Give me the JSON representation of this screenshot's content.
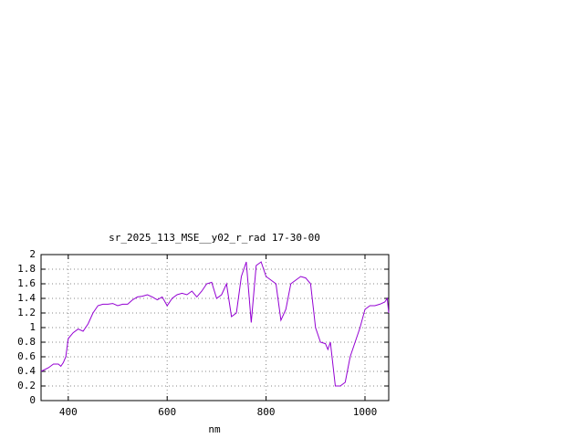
{
  "chart_data": {
    "type": "line",
    "title": "sr_2025_113_MSE__y02_r_rad 17-30-00",
    "x_label": "nm",
    "xlim": [
      345,
      1048
    ],
    "xticks": [
      400,
      600,
      800,
      1000
    ],
    "ylim": [
      0,
      2
    ],
    "yticks": [
      0,
      0.2,
      0.4,
      0.6,
      0.8,
      1,
      1.2,
      1.4,
      1.6,
      1.8,
      2
    ],
    "grid": true,
    "x": [
      345,
      360,
      370,
      380,
      385,
      390,
      395,
      400,
      410,
      420,
      430,
      440,
      450,
      460,
      470,
      480,
      490,
      500,
      510,
      520,
      530,
      540,
      550,
      560,
      570,
      580,
      590,
      600,
      610,
      620,
      630,
      640,
      650,
      660,
      670,
      680,
      690,
      700,
      710,
      720,
      730,
      740,
      750,
      760,
      770,
      780,
      790,
      800,
      810,
      820,
      830,
      840,
      850,
      860,
      870,
      880,
      890,
      900,
      910,
      920,
      925,
      930,
      940,
      950,
      960,
      970,
      980,
      990,
      1000,
      1010,
      1020,
      1030,
      1040,
      1045,
      1048
    ],
    "series": [
      {
        "name": "sr_2025_113_MSE__y02_r_rad",
        "color": "#9400d3",
        "values": [
          0.4,
          0.45,
          0.5,
          0.5,
          0.47,
          0.52,
          0.6,
          0.85,
          0.93,
          0.98,
          0.95,
          1.05,
          1.2,
          1.3,
          1.32,
          1.32,
          1.33,
          1.3,
          1.32,
          1.32,
          1.38,
          1.42,
          1.43,
          1.45,
          1.42,
          1.38,
          1.42,
          1.3,
          1.4,
          1.45,
          1.47,
          1.45,
          1.5,
          1.42,
          1.5,
          1.6,
          1.62,
          1.4,
          1.45,
          1.6,
          1.15,
          1.2,
          1.7,
          1.9,
          1.07,
          1.85,
          1.9,
          1.7,
          1.65,
          1.6,
          1.1,
          1.25,
          1.6,
          1.65,
          1.7,
          1.68,
          1.6,
          1.0,
          0.8,
          0.78,
          0.7,
          0.8,
          0.2,
          0.2,
          0.25,
          0.6,
          0.8,
          1.0,
          1.25,
          1.3,
          1.3,
          1.32,
          1.35,
          1.4,
          1.2
        ]
      }
    ]
  }
}
